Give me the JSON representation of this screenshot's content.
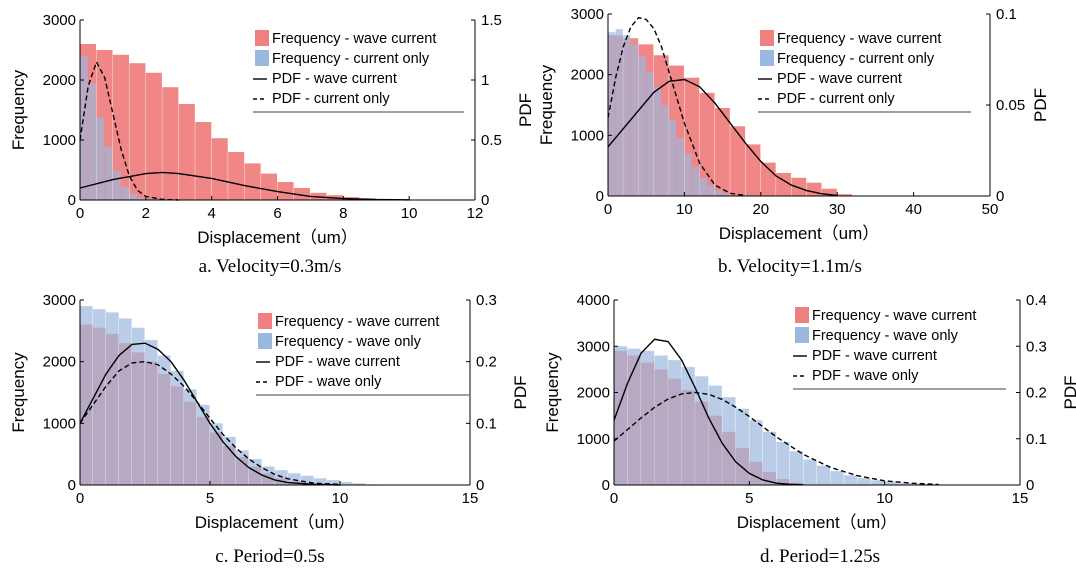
{
  "chart_data": [
    {
      "type": "bar",
      "caption": "a.    Velocity=0.3m/s",
      "xlabel": "Displacement（um）",
      "ylabel": "Frequency",
      "y2label": "PDF",
      "xlim": [
        0,
        12
      ],
      "ylim": [
        0,
        3000
      ],
      "y2lim": [
        0,
        1.5
      ],
      "xticks": [
        "0",
        "2",
        "4",
        "6",
        "8",
        "10",
        "12"
      ],
      "yticks": [
        "0",
        "1000",
        "2000",
        "3000"
      ],
      "y2ticks": [
        "0",
        "0.5",
        "1",
        "1.5"
      ],
      "grid": false,
      "legend_position": "top-right",
      "legend": [
        "Frequency - wave current",
        "Frequency - current only",
        "PDF - wave current",
        "PDF - current only"
      ],
      "colors": {
        "series1": "#f08080",
        "series2": "#9bb8de",
        "pdf": "#000000"
      },
      "hist_wave_current": {
        "x": [
          0,
          0.5,
          1,
          1.5,
          2,
          2.5,
          3,
          3.5,
          4,
          4.5,
          5,
          5.5,
          6,
          6.5,
          7,
          7.5,
          8,
          8.5,
          9,
          9.5,
          10,
          10.5
        ],
        "y": [
          2600,
          2500,
          2420,
          2280,
          2120,
          1880,
          1600,
          1300,
          1030,
          800,
          610,
          440,
          300,
          200,
          120,
          80,
          50,
          30,
          15,
          8,
          3,
          0
        ]
      },
      "hist_current_only": {
        "x": [
          0,
          0.25,
          0.5,
          0.75,
          1,
          1.25,
          1.5,
          1.75,
          2
        ],
        "y": [
          2400,
          1950,
          1380,
          880,
          480,
          220,
          100,
          40,
          10
        ]
      },
      "pdf_wave_current": {
        "x": [
          0,
          1,
          2,
          2.5,
          3,
          4,
          5,
          6,
          7,
          8,
          9,
          10
        ],
        "y": [
          0.1,
          0.17,
          0.22,
          0.23,
          0.22,
          0.18,
          0.12,
          0.07,
          0.03,
          0.012,
          0.004,
          0.001
        ]
      },
      "pdf_current_only": {
        "x": [
          0,
          0.25,
          0.5,
          0.75,
          1,
          1.25,
          1.5,
          1.75,
          2,
          2.5,
          3
        ],
        "y": [
          0.5,
          0.95,
          1.15,
          1.02,
          0.72,
          0.42,
          0.2,
          0.08,
          0.03,
          0.005,
          0
        ]
      }
    },
    {
      "type": "bar",
      "caption": "b.    Velocity=1.1m/s",
      "xlabel": "Displacement（um）",
      "ylabel": "Frequency",
      "y2label": "PDF",
      "xlim": [
        0,
        50
      ],
      "ylim": [
        0,
        3000
      ],
      "y2lim": [
        0,
        0.1
      ],
      "xticks": [
        "0",
        "10",
        "20",
        "30",
        "40",
        "50"
      ],
      "yticks": [
        "0",
        "1000",
        "2000",
        "3000"
      ],
      "y2ticks": [
        "0",
        "0.05",
        "0.1"
      ],
      "grid": false,
      "legend_position": "top-right",
      "legend": [
        "Frequency - wave current",
        "Frequency - current only",
        "PDF - wave current",
        "PDF - current only"
      ],
      "colors": {
        "series1": "#f08080",
        "series2": "#9bb8de",
        "pdf": "#000000"
      },
      "hist_wave_current": {
        "x": [
          0,
          2,
          4,
          6,
          8,
          10,
          12,
          14,
          16,
          18,
          20,
          22,
          24,
          26,
          28,
          30
        ],
        "y": [
          2650,
          2600,
          2500,
          2320,
          2150,
          1950,
          1700,
          1450,
          1150,
          850,
          550,
          380,
          300,
          220,
          120,
          30
        ]
      },
      "hist_current_only": {
        "x": [
          0,
          1,
          2,
          3,
          4,
          5,
          6,
          7,
          8,
          9,
          10,
          11,
          12,
          13,
          14,
          15,
          16
        ],
        "y": [
          2700,
          2750,
          2650,
          2500,
          2300,
          2050,
          1800,
          1500,
          1250,
          950,
          700,
          480,
          300,
          180,
          90,
          40,
          10
        ]
      },
      "pdf_wave_current": {
        "x": [
          0,
          2,
          4,
          6,
          8,
          10,
          12,
          14,
          16,
          18,
          20,
          22,
          24,
          26,
          28,
          30
        ],
        "y": [
          0.027,
          0.037,
          0.047,
          0.057,
          0.063,
          0.064,
          0.06,
          0.051,
          0.04,
          0.029,
          0.019,
          0.011,
          0.006,
          0.003,
          0.0012,
          0.0003
        ]
      },
      "pdf_current_only": {
        "x": [
          0,
          1,
          2,
          3,
          4,
          5,
          6,
          7,
          8,
          10,
          12,
          14,
          16,
          18
        ],
        "y": [
          0.043,
          0.065,
          0.082,
          0.093,
          0.098,
          0.097,
          0.092,
          0.082,
          0.068,
          0.04,
          0.018,
          0.006,
          0.0015,
          0.0003
        ]
      }
    },
    {
      "type": "bar",
      "caption": "c.    Period=0.5s",
      "xlabel": "Displacement（um）",
      "ylabel": "Frequency",
      "y2label": "PDF",
      "xlim": [
        0,
        15
      ],
      "ylim": [
        0,
        3000
      ],
      "y2lim": [
        0,
        0.3
      ],
      "xticks": [
        "0",
        "5",
        "10",
        "15"
      ],
      "yticks": [
        "0",
        "1000",
        "2000",
        "3000"
      ],
      "y2ticks": [
        "0",
        "0.1",
        "0.2",
        "0.3"
      ],
      "grid": false,
      "legend_position": "top-right",
      "legend": [
        "Frequency - wave current",
        "Frequency - wave only",
        "PDF - wave current",
        "PDF - wave only"
      ],
      "colors": {
        "series1": "#f08080",
        "series2": "#9bb8de",
        "pdf": "#000000"
      },
      "hist_wave_current": {
        "x": [
          0,
          0.5,
          1,
          1.5,
          2,
          2.5,
          3,
          3.5,
          4,
          4.5,
          5,
          5.5,
          6,
          6.5,
          7,
          7.5,
          8,
          8.5,
          9,
          9.5,
          10
        ],
        "y": [
          2600,
          2550,
          2450,
          2300,
          2150,
          2000,
          1800,
          1600,
          1350,
          1100,
          850,
          630,
          450,
          300,
          190,
          110,
          60,
          30,
          15,
          5,
          0
        ]
      },
      "hist_wave_only": {
        "x": [
          0,
          0.5,
          1,
          1.5,
          2,
          2.5,
          3,
          3.5,
          4,
          4.5,
          5,
          5.5,
          6,
          6.5,
          7,
          7.5,
          8,
          8.5,
          9,
          9.5,
          10,
          10.5,
          11,
          11.5
        ],
        "y": [
          2900,
          2850,
          2800,
          2700,
          2550,
          2350,
          2100,
          1850,
          1550,
          1300,
          1000,
          780,
          560,
          420,
          300,
          240,
          190,
          150,
          110,
          80,
          50,
          25,
          10,
          3
        ]
      },
      "pdf_wave_current": {
        "x": [
          0,
          0.5,
          1,
          1.5,
          2,
          2.5,
          3,
          3.5,
          4,
          4.5,
          5,
          5.5,
          6,
          6.5,
          7,
          7.5,
          8,
          9,
          10
        ],
        "y": [
          0.1,
          0.14,
          0.18,
          0.21,
          0.228,
          0.23,
          0.22,
          0.2,
          0.17,
          0.135,
          0.1,
          0.07,
          0.046,
          0.028,
          0.016,
          0.008,
          0.004,
          0.001,
          0
        ]
      },
      "pdf_wave_only": {
        "x": [
          0,
          0.5,
          1,
          1.5,
          2,
          2.5,
          3,
          3.5,
          4,
          4.5,
          5,
          5.5,
          6,
          6.5,
          7,
          7.5,
          8,
          9,
          10
        ],
        "y": [
          0.1,
          0.13,
          0.16,
          0.185,
          0.198,
          0.2,
          0.195,
          0.18,
          0.16,
          0.135,
          0.108,
          0.082,
          0.06,
          0.042,
          0.028,
          0.017,
          0.01,
          0.003,
          0.001
        ]
      }
    },
    {
      "type": "bar",
      "caption": "d.    Period=1.25s",
      "xlabel": "Displacement（um）",
      "ylabel": "Frequency",
      "y2label": "PDF",
      "xlim": [
        0,
        15
      ],
      "ylim": [
        0,
        4000
      ],
      "y2lim": [
        0,
        0.4
      ],
      "xticks": [
        "0",
        "5",
        "10",
        "15"
      ],
      "yticks": [
        "0",
        "1000",
        "2000",
        "3000",
        "4000"
      ],
      "y2ticks": [
        "0",
        "0.1",
        "0.2",
        "0.3",
        "0.4"
      ],
      "grid": false,
      "legend_position": "top-right",
      "legend": [
        "Frequency - wave current",
        "Frequency - wave only",
        "PDF - wave current",
        "PDF - wave only"
      ],
      "colors": {
        "series1": "#f08080",
        "series2": "#9bb8de",
        "pdf": "#000000"
      },
      "hist_wave_current": {
        "x": [
          0,
          0.5,
          1,
          1.5,
          2,
          2.5,
          3,
          3.5,
          4,
          4.5,
          5,
          5.5,
          6,
          6.5,
          7
        ],
        "y": [
          2900,
          2800,
          2650,
          2500,
          2300,
          2050,
          1800,
          1500,
          1150,
          800,
          500,
          280,
          130,
          50,
          10
        ]
      },
      "hist_wave_only": {
        "x": [
          0,
          0.5,
          1,
          1.5,
          2,
          2.5,
          3,
          3.5,
          4,
          4.5,
          5,
          5.5,
          6,
          6.5,
          7,
          7.5,
          8,
          8.5,
          9,
          9.5,
          10,
          10.5,
          11,
          11.5,
          12,
          12.5,
          13
        ],
        "y": [
          3000,
          2950,
          2900,
          2800,
          2700,
          2550,
          2350,
          2150,
          1900,
          1650,
          1400,
          1150,
          930,
          730,
          550,
          420,
          300,
          210,
          150,
          100,
          70,
          45,
          30,
          20,
          10,
          5,
          2
        ]
      },
      "pdf_wave_current": {
        "x": [
          0,
          0.5,
          1,
          1.5,
          2,
          2.5,
          3,
          3.5,
          4,
          4.5,
          5,
          5.5,
          6,
          6.5,
          7
        ],
        "y": [
          0.14,
          0.22,
          0.285,
          0.315,
          0.31,
          0.27,
          0.21,
          0.145,
          0.09,
          0.05,
          0.025,
          0.011,
          0.004,
          0.0015,
          0.0005
        ]
      },
      "pdf_wave_only": {
        "x": [
          0,
          0.5,
          1,
          1.5,
          2,
          2.5,
          3,
          3.5,
          4,
          4.5,
          5,
          5.5,
          6,
          7,
          8,
          9,
          10,
          11,
          12
        ],
        "y": [
          0.095,
          0.12,
          0.145,
          0.168,
          0.186,
          0.197,
          0.2,
          0.196,
          0.185,
          0.168,
          0.148,
          0.126,
          0.104,
          0.066,
          0.038,
          0.02,
          0.009,
          0.004,
          0.001
        ]
      }
    }
  ]
}
